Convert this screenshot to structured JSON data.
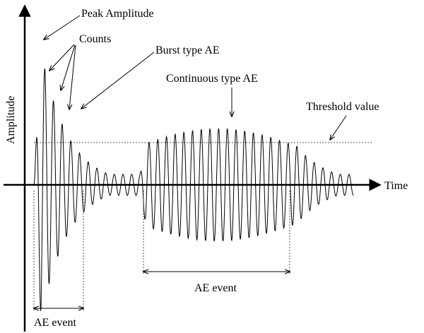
{
  "axes": {
    "y_label": "Amplitude",
    "x_label": "Time"
  },
  "annotations": [
    {
      "text": "Peak Amplitude"
    },
    {
      "text": "Counts"
    },
    {
      "text": "Burst type AE"
    },
    {
      "text": "Continuous type AE"
    },
    {
      "text": "Threshold value"
    }
  ],
  "events": [
    {
      "label": "AE event"
    },
    {
      "label": "AE event"
    }
  ]
}
